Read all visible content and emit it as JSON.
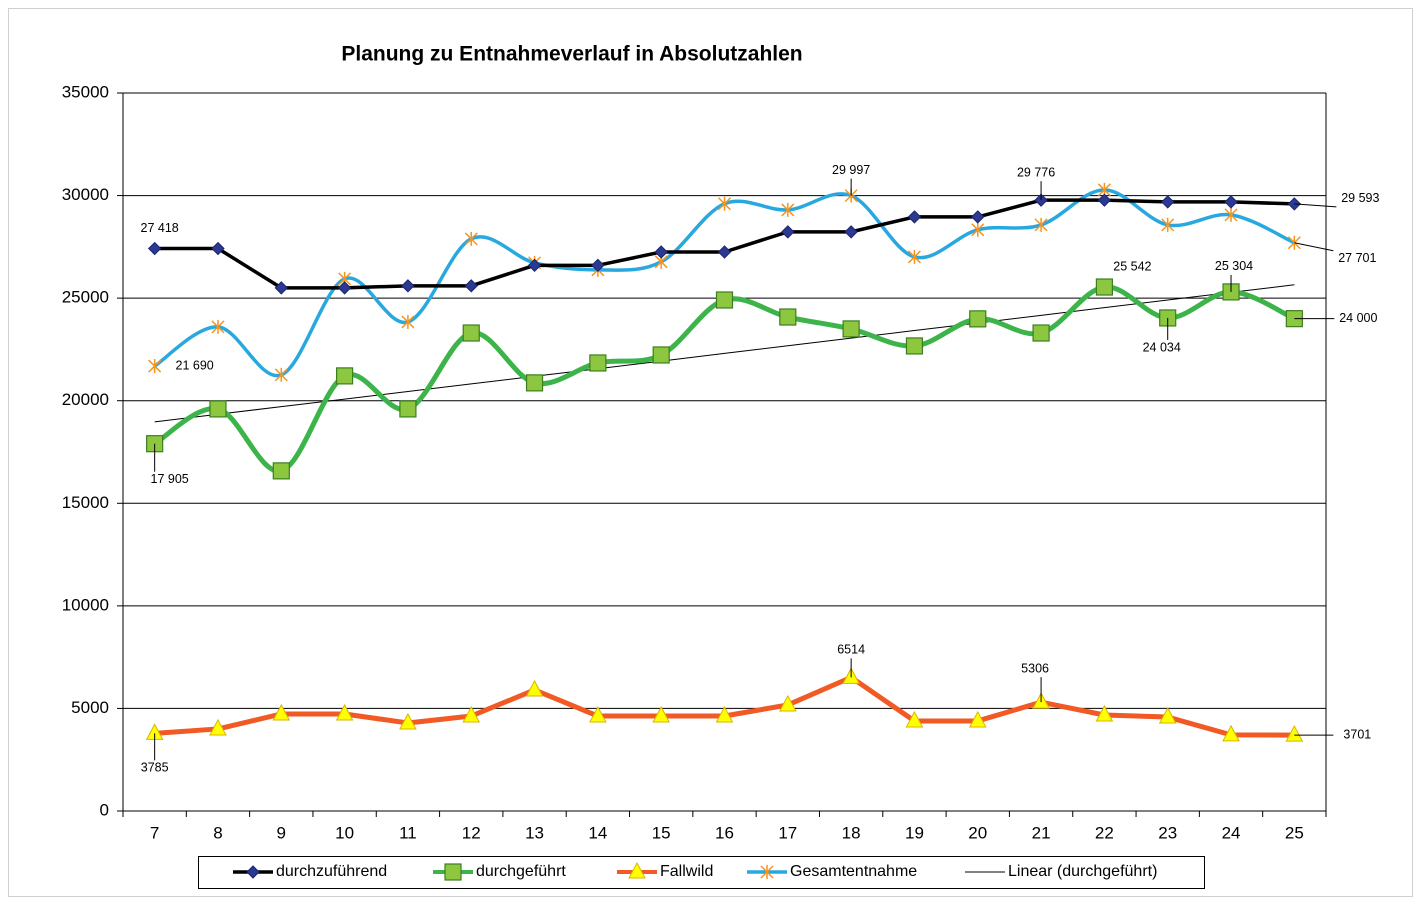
{
  "chart_data": {
    "type": "line",
    "title": "Planung  zu Entnahmeverlauf in Absolutzahlen",
    "categories": [
      "7",
      "8",
      "9",
      "10",
      "11",
      "12",
      "13",
      "14",
      "15",
      "16",
      "17",
      "18",
      "19",
      "20",
      "21",
      "22",
      "23",
      "24",
      "25"
    ],
    "ylim": [
      0,
      35000
    ],
    "yticks": [
      0,
      5000,
      10000,
      15000,
      20000,
      25000,
      30000,
      35000
    ],
    "grid": true,
    "legend": "bottom",
    "series": [
      {
        "name": "durchzuführend",
        "color": "#000000",
        "marker": "diamond",
        "marker_color": "#2b3990",
        "smooth": false,
        "values": [
          27418,
          27418,
          25500,
          25500,
          25600,
          25600,
          26600,
          26600,
          27250,
          27250,
          28230,
          28230,
          28960,
          28960,
          29776,
          29776,
          29690,
          29690,
          29593
        ],
        "value_labels": [
          "27 418",
          null,
          null,
          null,
          null,
          null,
          null,
          null,
          null,
          null,
          null,
          null,
          null,
          null,
          "29 776",
          null,
          null,
          null,
          "29 593"
        ]
      },
      {
        "name": "durchgeführt",
        "color": "#3cb44a",
        "marker": "square",
        "marker_color": "#8dc63f",
        "smooth": true,
        "values": [
          17905,
          19600,
          16580,
          21210,
          19600,
          23300,
          20870,
          21840,
          22230,
          24910,
          24080,
          23500,
          22670,
          23990,
          23300,
          25542,
          24034,
          25304,
          24000
        ],
        "value_labels": [
          "17 905",
          null,
          null,
          null,
          null,
          null,
          null,
          null,
          null,
          null,
          null,
          null,
          null,
          null,
          null,
          "25 542",
          "24 034",
          "25 304",
          "24 000"
        ]
      },
      {
        "name": "Fallwild",
        "color": "#f15a24",
        "marker": "triangle",
        "marker_color": "#ffff00",
        "smooth": false,
        "values": [
          3785,
          4000,
          4730,
          4730,
          4290,
          4630,
          5900,
          4630,
          4630,
          4630,
          5170,
          6514,
          4390,
          4390,
          5306,
          4680,
          4580,
          3710,
          3701
        ],
        "value_labels": [
          "3785",
          null,
          null,
          null,
          null,
          null,
          null,
          null,
          null,
          null,
          null,
          "6514",
          null,
          null,
          "5306",
          null,
          null,
          null,
          "3701"
        ]
      },
      {
        "name": "Gesamtentnahme",
        "color": "#29a8e0",
        "marker": "star",
        "marker_color": "#f7941d",
        "smooth": true,
        "values": [
          21690,
          23600,
          21260,
          25940,
          23840,
          27890,
          26720,
          26380,
          26770,
          29600,
          29300,
          29997,
          27010,
          28330,
          28570,
          30280,
          28570,
          29060,
          27701
        ],
        "value_labels": [
          "21 690",
          null,
          null,
          null,
          null,
          null,
          null,
          null,
          null,
          null,
          null,
          "29 997",
          null,
          null,
          null,
          null,
          null,
          null,
          "27 701"
        ]
      },
      {
        "name": "Linear (durchgeführt)",
        "color": "#000000",
        "marker": "none",
        "smooth": false,
        "values": [
          18970,
          19340,
          19710,
          20080,
          20450,
          20820,
          21190,
          21560,
          21930,
          22310,
          22680,
          23050,
          23420,
          23790,
          24160,
          24540,
          24910,
          25280,
          25650
        ]
      }
    ]
  }
}
